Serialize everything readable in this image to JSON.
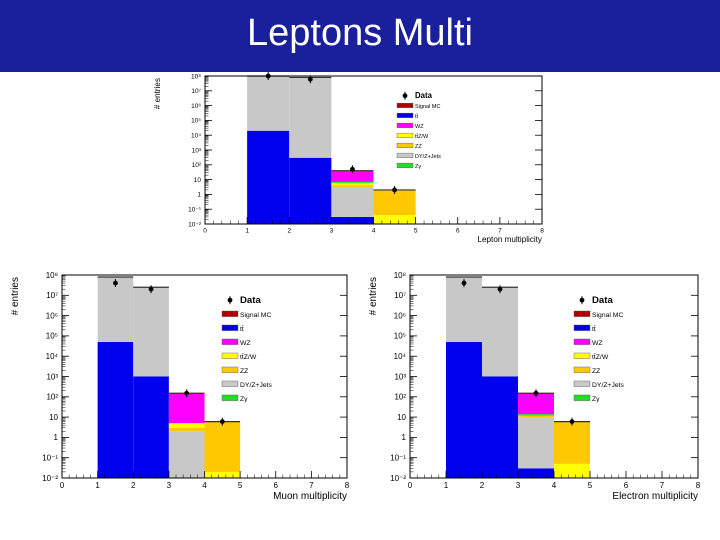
{
  "header": {
    "title": "Leptons Multi"
  },
  "legend_entries": [
    {
      "label": "Data",
      "color": "#000000",
      "marker": "point"
    },
    {
      "label": "Signal MC",
      "color": "#b00000"
    },
    {
      "label": "tt̄",
      "color": "#0000ee"
    },
    {
      "label": "WZ",
      "color": "#ff00ff"
    },
    {
      "label": "tt̄Z/W",
      "color": "#ffff00"
    },
    {
      "label": "ZZ",
      "color": "#ffc800"
    },
    {
      "label": "DY/Z+Jets",
      "color": "#c8c8c8"
    },
    {
      "label": "Zγ",
      "color": "#22dd22"
    }
  ],
  "chart_data": [
    {
      "type": "bar",
      "stacked": true,
      "log_y": true,
      "xlabel": "Lepton multiplicity",
      "ylabel": "# entries",
      "xlim": [
        0,
        8
      ],
      "ylim_exp": [
        -2,
        8
      ],
      "x_ticks": [
        "0",
        "1",
        "2",
        "3",
        "4",
        "5",
        "6",
        "7",
        "8"
      ],
      "y_ticks": [
        "10⁻²",
        "10⁻¹",
        "1",
        "10",
        "10²",
        "10³",
        "10⁴",
        "10⁵",
        "10⁶",
        "10⁷",
        "10⁸"
      ],
      "legend_position": "top-right",
      "bins": [
        {
          "x": [
            1,
            2
          ],
          "tt": 20000,
          "total": 150000000,
          "stack": [
            [
              "tt",
              20000
            ],
            [
              "dy",
              150000000
            ]
          ]
        },
        {
          "x": [
            2,
            3
          ],
          "tt": 300,
          "total": 80000000,
          "stack": [
            [
              "tt",
              300
            ],
            [
              "dy",
              80000000
            ]
          ]
        },
        {
          "x": [
            3,
            4
          ],
          "tt": 0.03,
          "total": 40,
          "stack": [
            [
              "tt",
              0.03
            ],
            [
              "dy",
              3
            ],
            [
              "zz",
              4
            ],
            [
              "ttzw",
              6
            ],
            [
              "zg",
              7
            ],
            [
              "wz",
              40
            ]
          ]
        },
        {
          "x": [
            4,
            5
          ],
          "tt": 0,
          "total": 2,
          "stack": [
            [
              "ttzw",
              0.04
            ],
            [
              "zz",
              2
            ]
          ]
        }
      ],
      "data_points": [
        {
          "x": 1.5,
          "y": 100000000
        },
        {
          "x": 2.5,
          "y": 60000000
        },
        {
          "x": 3.5,
          "y": 50
        },
        {
          "x": 4.5,
          "y": 2
        }
      ]
    },
    {
      "type": "bar",
      "stacked": true,
      "log_y": true,
      "xlabel": "Muon multiplicity",
      "ylabel": "# entries",
      "xlim": [
        0,
        8
      ],
      "ylim_exp": [
        -2,
        8
      ],
      "x_ticks": [
        "0",
        "1",
        "2",
        "3",
        "4",
        "5",
        "6",
        "7",
        "8"
      ],
      "y_ticks": [
        "10⁻²",
        "10⁻¹",
        "1",
        "10",
        "10²",
        "10³",
        "10⁴",
        "10⁵",
        "10⁶",
        "10⁷",
        "10⁸"
      ],
      "legend_position": "top-right",
      "bins": [
        {
          "x": [
            1,
            2
          ],
          "stack": [
            [
              "tt",
              50000
            ],
            [
              "dy",
              80000000
            ]
          ]
        },
        {
          "x": [
            2,
            3
          ],
          "stack": [
            [
              "tt",
              1000
            ],
            [
              "dy",
              25000000
            ]
          ]
        },
        {
          "x": [
            3,
            4
          ],
          "stack": [
            [
              "dy",
              2
            ],
            [
              "zz",
              3
            ],
            [
              "ttzw",
              5
            ],
            [
              "wz",
              150
            ]
          ]
        },
        {
          "x": [
            4,
            5
          ],
          "stack": [
            [
              "ttzw",
              0.02
            ],
            [
              "zz",
              6
            ]
          ]
        }
      ],
      "data_points": [
        {
          "x": 1.5,
          "y": 40000000
        },
        {
          "x": 2.5,
          "y": 20000000
        },
        {
          "x": 3.5,
          "y": 150
        },
        {
          "x": 4.5,
          "y": 6
        }
      ]
    },
    {
      "type": "bar",
      "stacked": true,
      "log_y": true,
      "xlabel": "Electron multiplicity",
      "ylabel": "# entries",
      "xlim": [
        0,
        8
      ],
      "ylim_exp": [
        -2,
        8
      ],
      "x_ticks": [
        "0",
        "1",
        "2",
        "3",
        "4",
        "5",
        "6",
        "7",
        "8"
      ],
      "y_ticks": [
        "10⁻²",
        "10⁻¹",
        "1",
        "10",
        "10²",
        "10³",
        "10⁴",
        "10⁵",
        "10⁶",
        "10⁷",
        "10⁸"
      ],
      "legend_position": "top-right",
      "bins": [
        {
          "x": [
            1,
            2
          ],
          "stack": [
            [
              "tt",
              50000
            ],
            [
              "dy",
              80000000
            ]
          ]
        },
        {
          "x": [
            2,
            3
          ],
          "stack": [
            [
              "tt",
              1000
            ],
            [
              "dy",
              25000000
            ]
          ]
        },
        {
          "x": [
            3,
            4
          ],
          "stack": [
            [
              "tt",
              0.03
            ],
            [
              "dy",
              10
            ],
            [
              "zz",
              12
            ],
            [
              "zg",
              14
            ],
            [
              "wz",
              150
            ]
          ]
        },
        {
          "x": [
            4,
            5
          ],
          "stack": [
            [
              "ttzw",
              0.05
            ],
            [
              "zz",
              6
            ]
          ]
        }
      ],
      "data_points": [
        {
          "x": 1.5,
          "y": 40000000
        },
        {
          "x": 2.5,
          "y": 20000000
        },
        {
          "x": 3.5,
          "y": 150
        },
        {
          "x": 4.5,
          "y": 6
        }
      ]
    }
  ]
}
